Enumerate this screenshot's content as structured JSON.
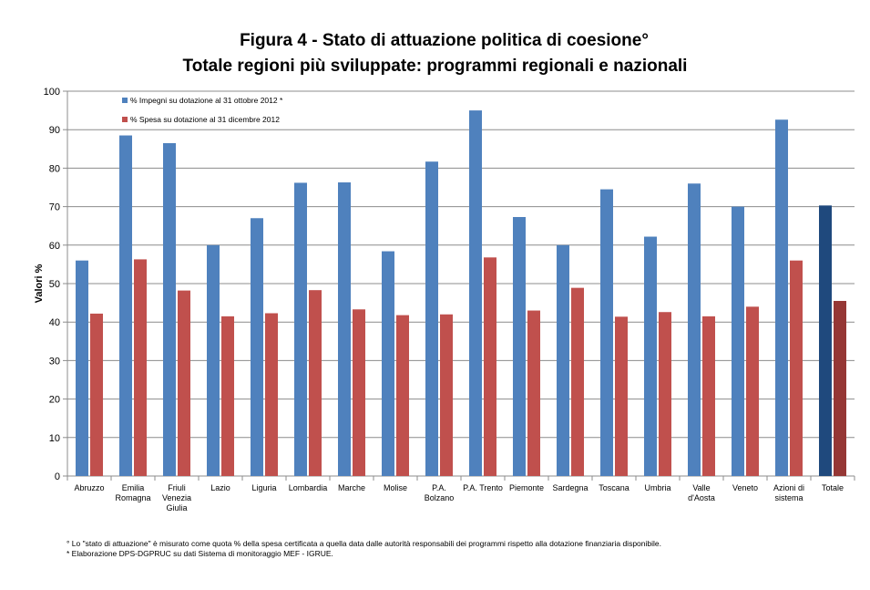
{
  "chart_data": {
    "type": "bar",
    "title": "Figura 4 - Stato di attuazione politica di coesione°",
    "subtitle": "Totale regioni più sviluppate: programmi regionali e nazionali",
    "ylabel": "Valori %",
    "xlabel": "",
    "ylim": [
      0,
      100
    ],
    "yticks": [
      0,
      10,
      20,
      30,
      40,
      50,
      60,
      70,
      80,
      90,
      100
    ],
    "grid": true,
    "legend_position": "top-left",
    "categories": [
      [
        "Abruzzo"
      ],
      [
        "Emilia",
        "Romagna"
      ],
      [
        "Friuli",
        "Venezia",
        "Giulia"
      ],
      [
        "Lazio"
      ],
      [
        "Liguria"
      ],
      [
        "Lombardia"
      ],
      [
        "Marche"
      ],
      [
        "Molise"
      ],
      [
        "P.A.",
        "Bolzano"
      ],
      [
        "P.A. Trento"
      ],
      [
        "Piemonte"
      ],
      [
        "Sardegna"
      ],
      [
        "Toscana"
      ],
      [
        "Umbria"
      ],
      [
        "Valle",
        "d'Aosta"
      ],
      [
        "Veneto"
      ],
      [
        "Azioni di",
        "sistema"
      ],
      [
        "Totale"
      ]
    ],
    "series": [
      {
        "name": "% Impegni su dotazione al 31 ottobre 2012 *",
        "color": "#4f81bd",
        "highlight_color": "#1f497d",
        "values": [
          56.0,
          88.5,
          86.5,
          60.0,
          67.0,
          76.2,
          76.3,
          58.4,
          81.7,
          95.0,
          67.3,
          60.0,
          74.5,
          62.2,
          76.0,
          70.0,
          92.6,
          70.3
        ]
      },
      {
        "name": "% Spesa su dotazione al 31 dicembre 2012",
        "color": "#c0504d",
        "highlight_color": "#953735",
        "values": [
          42.2,
          56.3,
          48.2,
          41.5,
          42.3,
          48.3,
          43.3,
          41.8,
          42.0,
          56.8,
          43.0,
          48.9,
          41.4,
          42.6,
          41.5,
          44.0,
          56.0,
          45.5
        ]
      }
    ]
  },
  "footnotes": [
    "° Lo \"stato di attuazione\" è misurato come quota % della spesa certificata a quella data dalle autorità responsabili dei  programmi rispetto alla dotazione finanziaria disponibile.",
    "* Elaborazione DPS-DGPRUC su dati Sistema di monitoraggio MEF - IGRUE."
  ]
}
